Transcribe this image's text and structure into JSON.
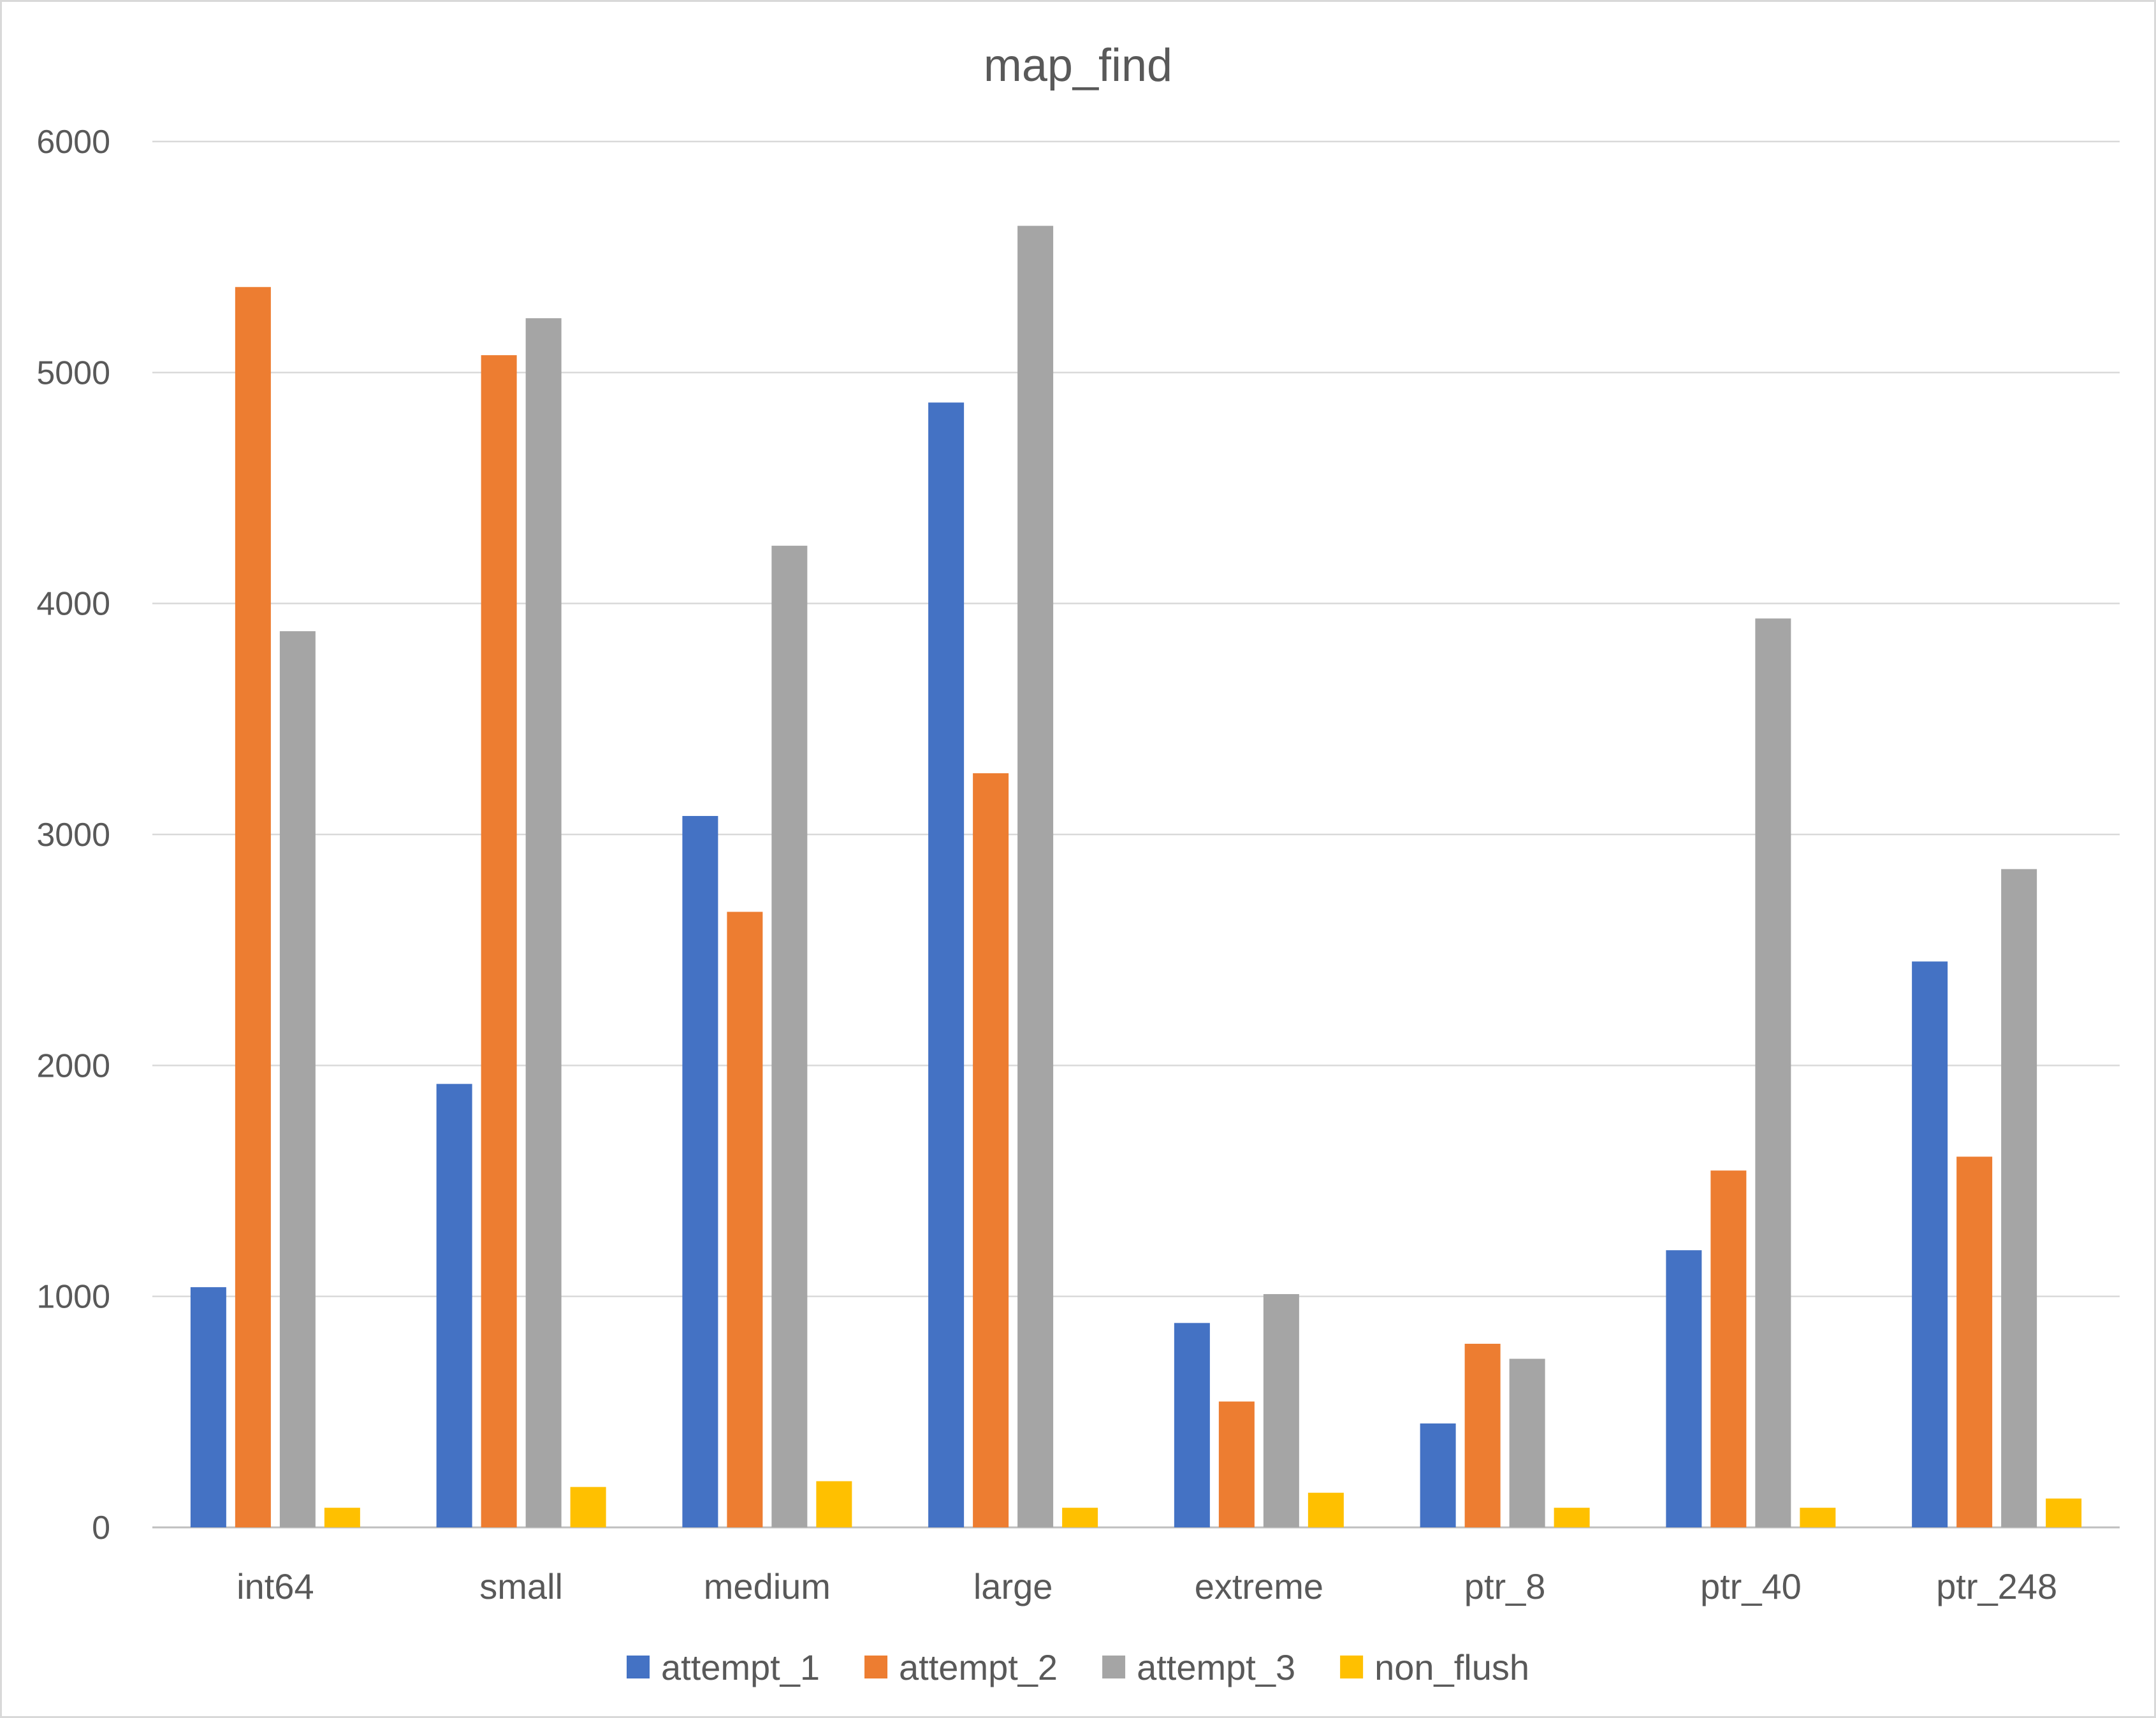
{
  "chart_data": {
    "type": "bar",
    "title": "map_find",
    "xlabel": "",
    "ylabel": "",
    "ylim": [
      0,
      6000
    ],
    "yticks": [
      0,
      1000,
      2000,
      3000,
      4000,
      5000,
      6000
    ],
    "grid": true,
    "legend_position": "bottom",
    "categories": [
      "int64",
      "small",
      "medium",
      "large",
      "extreme",
      "ptr_8",
      "ptr_40",
      "ptr_248"
    ],
    "series": [
      {
        "name": "attempt_1",
        "color": "#4472C4",
        "values": [
          1040,
          1920,
          3080,
          4870,
          885,
          450,
          1200,
          2450
        ]
      },
      {
        "name": "attempt_2",
        "color": "#ED7D31",
        "values": [
          5370,
          5075,
          2665,
          3265,
          545,
          795,
          1545,
          1605
        ]
      },
      {
        "name": "attempt_3",
        "color": "#A5A5A5",
        "values": [
          3880,
          5235,
          4250,
          5635,
          1010,
          730,
          3935,
          2850
        ]
      },
      {
        "name": "non_flush",
        "color": "#FFC000",
        "values": [
          85,
          175,
          200,
          85,
          150,
          85,
          85,
          125
        ]
      }
    ]
  }
}
